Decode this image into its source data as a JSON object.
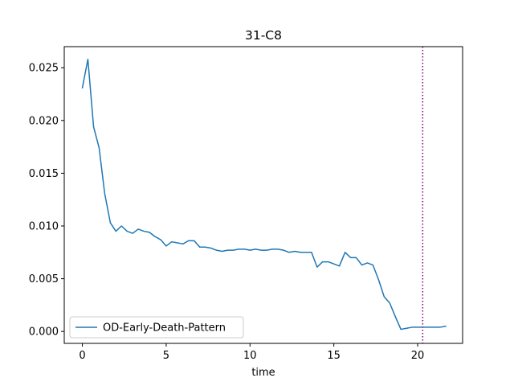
{
  "chart_data": {
    "type": "line",
    "title": "31-C8",
    "xlabel": "time",
    "ylabel": "",
    "xlim": [
      -1.08,
      22.68
    ],
    "ylim": [
      -0.00113,
      0.027
    ],
    "xticks": [
      0,
      5,
      10,
      15,
      20
    ],
    "xtick_labels": [
      "0",
      "5",
      "10",
      "15",
      "20"
    ],
    "yticks": [
      0.0,
      0.005,
      0.01,
      0.015,
      0.02,
      0.025
    ],
    "ytick_labels": [
      "0.000",
      "0.005",
      "0.010",
      "0.015",
      "0.020",
      "0.025"
    ],
    "grid": false,
    "legend": {
      "location": "lower left",
      "entries": [
        "OD-Early-Death-Pattern"
      ]
    },
    "series": [
      {
        "name": "OD-Early-Death-Pattern",
        "color": "#1f77b4",
        "x": [
          0.0,
          0.33,
          0.67,
          1.0,
          1.33,
          1.67,
          2.0,
          2.33,
          2.67,
          3.0,
          3.33,
          3.67,
          4.0,
          4.33,
          4.67,
          5.0,
          5.33,
          5.67,
          6.0,
          6.33,
          6.67,
          7.0,
          7.33,
          7.67,
          8.0,
          8.33,
          8.67,
          9.0,
          9.33,
          9.67,
          10.0,
          10.33,
          10.67,
          11.0,
          11.33,
          11.67,
          12.0,
          12.33,
          12.67,
          13.0,
          13.33,
          13.67,
          14.0,
          14.33,
          14.67,
          15.0,
          15.33,
          15.67,
          16.0,
          16.33,
          16.67,
          17.0,
          17.33,
          17.67,
          18.0,
          18.33,
          18.67,
          19.0,
          19.33,
          19.67,
          20.0,
          20.33,
          20.67,
          21.0,
          21.33,
          21.67
        ],
        "y": [
          0.0231,
          0.0258,
          0.0194,
          0.0174,
          0.0131,
          0.0103,
          0.0095,
          0.01,
          0.0095,
          0.0093,
          0.0097,
          0.0095,
          0.0094,
          0.009,
          0.0087,
          0.0081,
          0.0085,
          0.0084,
          0.0083,
          0.0086,
          0.0086,
          0.008,
          0.008,
          0.0079,
          0.0077,
          0.0076,
          0.0077,
          0.0077,
          0.0078,
          0.0078,
          0.0077,
          0.0078,
          0.0077,
          0.0077,
          0.0078,
          0.0078,
          0.0077,
          0.0075,
          0.0076,
          0.0075,
          0.0075,
          0.0075,
          0.0061,
          0.0066,
          0.0066,
          0.0064,
          0.0062,
          0.0075,
          0.007,
          0.007,
          0.0063,
          0.0065,
          0.0063,
          0.0049,
          0.0033,
          0.0027,
          0.0014,
          0.0002,
          0.0003,
          0.0004,
          0.0004,
          0.0004,
          0.0004,
          0.0004,
          0.0004,
          0.0005
        ]
      }
    ],
    "vline": {
      "x": 20.3,
      "color": "#800080",
      "style": "dotted"
    }
  }
}
